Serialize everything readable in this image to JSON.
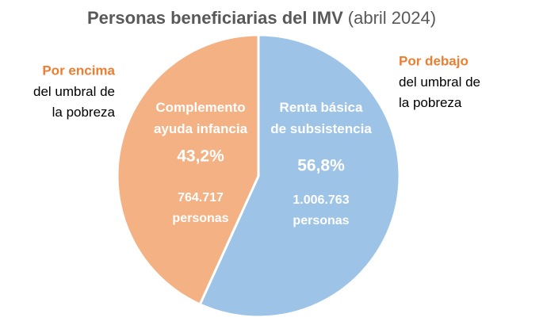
{
  "chart_data": {
    "type": "pie",
    "title": "Personas beneficiarias del IMV",
    "subtitle": "(abril 2024)",
    "categories": [
      "Renta básica\nde subsistencia",
      "Complemento\nayuda infancia"
    ],
    "values": [
      56.8,
      43.2
    ],
    "value_labels": [
      "56,8%",
      "43,2%"
    ],
    "counts": [
      1006763,
      764717
    ],
    "count_labels": [
      "1.006.763\npersonas",
      "764.717\npersonas"
    ],
    "colors": [
      "#9dc3e6",
      "#f4b183"
    ],
    "annotations": [
      {
        "heading": "Por debajo",
        "text": "del umbral de\nla pobreza"
      },
      {
        "heading": "Por encima",
        "text": "del umbral de\nla pobreza"
      }
    ],
    "annotation_heading_color": "#ed7d31"
  }
}
